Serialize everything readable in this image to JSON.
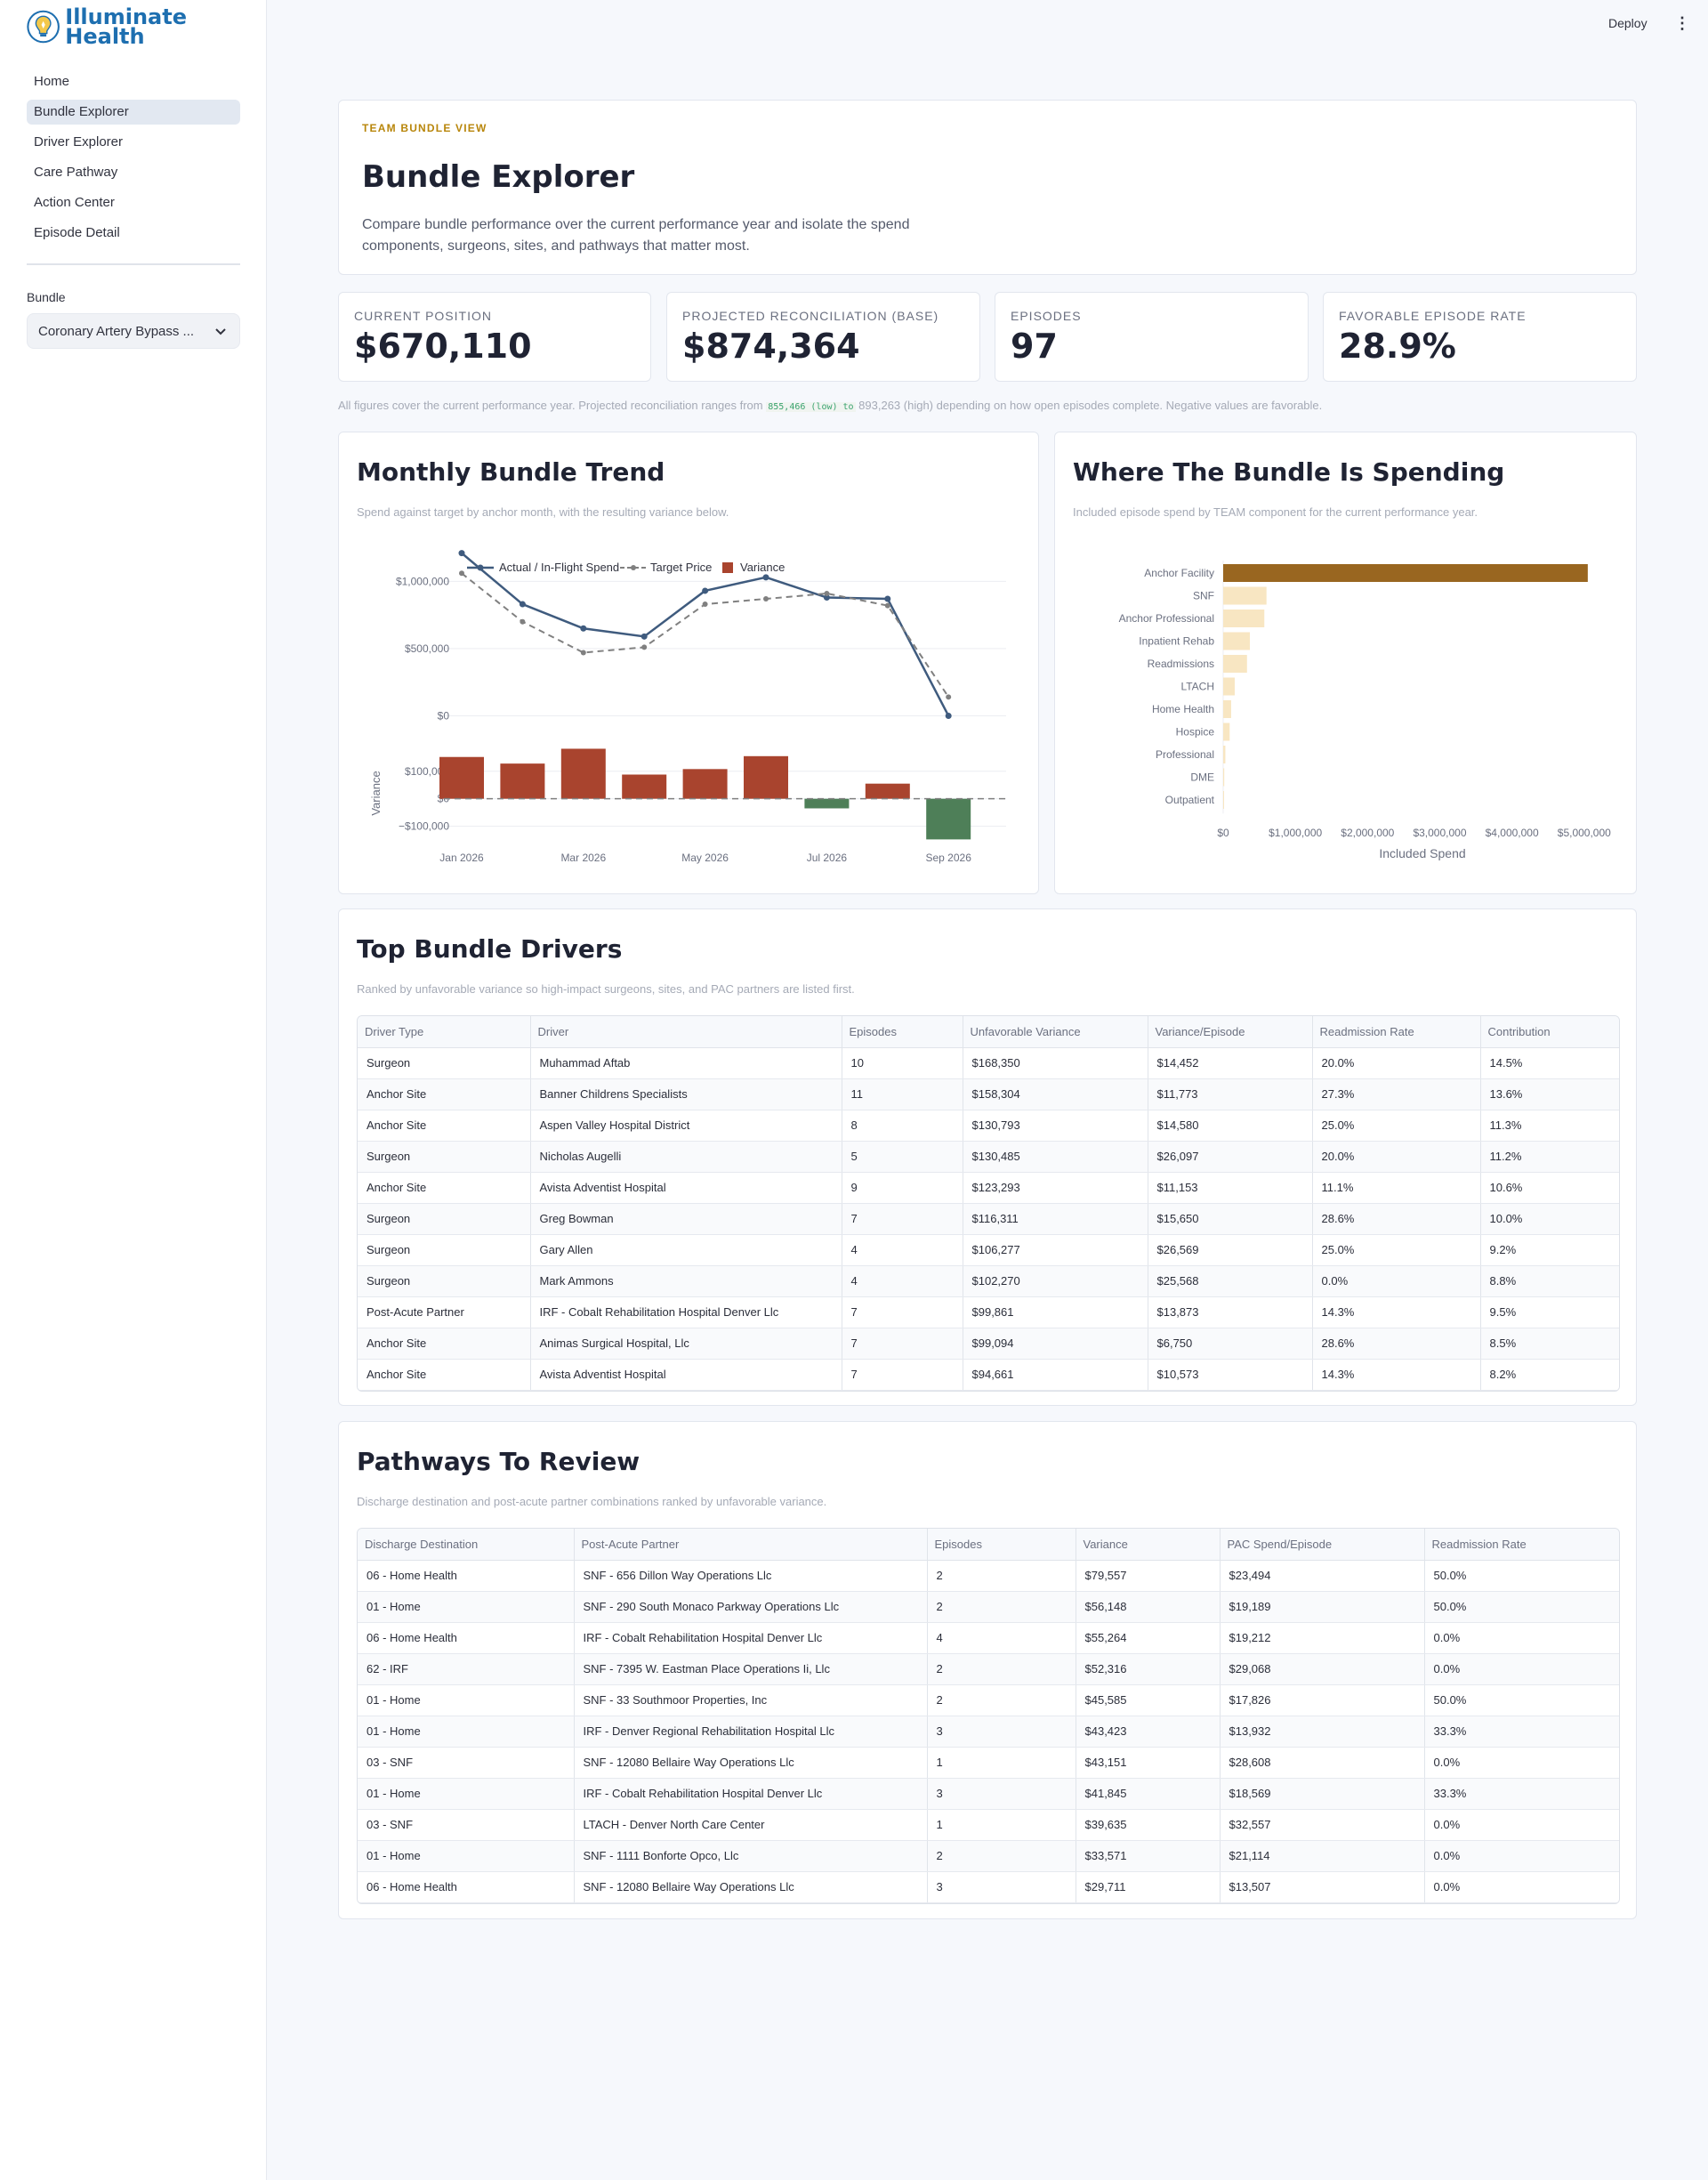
{
  "app": {
    "logo_line1": "Illuminate",
    "logo_line2": "Health"
  },
  "sidebar": {
    "nav": [
      {
        "label": "Home"
      },
      {
        "label": "Bundle Explorer",
        "active": true
      },
      {
        "label": "Driver Explorer"
      },
      {
        "label": "Care Pathway"
      },
      {
        "label": "Action Center"
      },
      {
        "label": "Episode Detail"
      }
    ],
    "bundle_label": "Bundle",
    "bundle_value": "Coronary Artery Bypass ..."
  },
  "topbar": {
    "deploy": "Deploy",
    "menu_glyph": "⋮"
  },
  "header": {
    "eyebrow": "TEAM BUNDLE VIEW",
    "title": "Bundle Explorer",
    "description": "Compare bundle performance over the current performance year and isolate the spend components, surgeons, sites, and pathways that matter most."
  },
  "kpis": [
    {
      "label": "CURRENT POSITION",
      "value": "$670,110"
    },
    {
      "label": "PROJECTED RECONCILIATION (BASE)",
      "value": "$874,364"
    },
    {
      "label": "EPISODES",
      "value": "97"
    },
    {
      "label": "FAVORABLE EPISODE RATE",
      "value": "28.9%"
    }
  ],
  "note": {
    "prefix": "All figures cover the current performance year. Projected reconciliation ranges from ",
    "code": "855,466 (low) to",
    "suffix": " 893,263 (high) depending on how open episodes complete. Negative values are favorable."
  },
  "trend": {
    "title": "Monthly Bundle Trend",
    "subtitle": "Spend against target by anchor month, with the resulting variance below."
  },
  "spend": {
    "title": "Where The Bundle Is Spending",
    "subtitle": "Included episode spend by TEAM component for the current performance year."
  },
  "chart_data": [
    {
      "type": "line",
      "title": "Monthly Bundle Trend",
      "x": [
        "Jan 2026",
        "Feb 2026",
        "Mar 2026",
        "Apr 2026",
        "May 2026",
        "Jun 2026",
        "Jul 2026",
        "Aug 2026",
        "Sep 2026"
      ],
      "x_ticks": [
        "Jan 2026",
        "Mar 2026",
        "May 2026",
        "Jul 2026",
        "Sep 2026"
      ],
      "series": [
        {
          "name": "Actual / In-Flight Spend",
          "values": [
            1210000,
            830000,
            650000,
            590000,
            930000,
            1030000,
            880000,
            870000,
            0
          ],
          "color": "#3f5b7e"
        },
        {
          "name": "Target Price",
          "values": [
            1060000,
            700000,
            470000,
            510000,
            830000,
            870000,
            910000,
            820000,
            140000
          ],
          "color": "#808080"
        }
      ],
      "y_ticks": [
        0,
        500000,
        1000000
      ],
      "y_tick_labels": [
        "$0",
        "$500,000",
        "$1,000,000"
      ],
      "ylim": [
        -30000,
        1340000
      ],
      "legend": "top"
    },
    {
      "type": "bar",
      "x": [
        "Jan 2026",
        "Feb 2026",
        "Mar 2026",
        "Apr 2026",
        "May 2026",
        "Jun 2026",
        "Jul 2026",
        "Aug 2026",
        "Sep 2026"
      ],
      "series": [
        {
          "name": "Variance",
          "values": [
            152000,
            128000,
            182000,
            88000,
            108000,
            155000,
            -35000,
            55000,
            -148000
          ]
        }
      ],
      "ylabel": "Variance",
      "y_ticks": [
        -100000,
        0,
        100000
      ],
      "y_tick_labels": [
        "−$100,000",
        "$0",
        "$100,000"
      ],
      "ylim": [
        -150000,
        190000
      ],
      "colors": {
        "positive": "#a9442e",
        "negative": "#4e7f58"
      }
    },
    {
      "type": "bar",
      "orientation": "horizontal",
      "title": "Where The Bundle Is Spending",
      "categories": [
        "Anchor Facility",
        "SNF",
        "Anchor Professional",
        "Inpatient Rehab",
        "Readmissions",
        "LTACH",
        "Home Health",
        "Hospice",
        "Professional",
        "DME",
        "Outpatient"
      ],
      "values": [
        5050000,
        600000,
        570000,
        370000,
        330000,
        160000,
        110000,
        90000,
        30000,
        15000,
        8000
      ],
      "xlabel": "Included Spend",
      "x_ticks": [
        0,
        1000000,
        2000000,
        3000000,
        4000000,
        5000000
      ],
      "x_tick_labels": [
        "$0",
        "$1,000,000",
        "$2,000,000",
        "$3,000,000",
        "$4,000,000",
        "$5,000,000"
      ],
      "xlim": [
        0,
        5520000
      ],
      "colors": {
        "top": "#996620",
        "rest": "#f8e6c2"
      }
    }
  ],
  "drivers": {
    "title": "Top Bundle Drivers",
    "subtitle": "Ranked by unfavorable variance so high-impact surgeons, sites, and PAC partners are listed first.",
    "columns": [
      "Driver Type",
      "Driver",
      "Episodes",
      "Unfavorable Variance",
      "Variance/Episode",
      "Readmission Rate",
      "Contribution"
    ],
    "rows": [
      [
        "Surgeon",
        "Muhammad Aftab",
        "10",
        "$168,350",
        "$14,452",
        "20.0%",
        "14.5%"
      ],
      [
        "Anchor Site",
        "Banner Childrens Specialists",
        "11",
        "$158,304",
        "$11,773",
        "27.3%",
        "13.6%"
      ],
      [
        "Anchor Site",
        "Aspen Valley Hospital District",
        "8",
        "$130,793",
        "$14,580",
        "25.0%",
        "11.3%"
      ],
      [
        "Surgeon",
        "Nicholas Augelli",
        "5",
        "$130,485",
        "$26,097",
        "20.0%",
        "11.2%"
      ],
      [
        "Anchor Site",
        "Avista Adventist Hospital",
        "9",
        "$123,293",
        "$11,153",
        "11.1%",
        "10.6%"
      ],
      [
        "Surgeon",
        "Greg Bowman",
        "7",
        "$116,311",
        "$15,650",
        "28.6%",
        "10.0%"
      ],
      [
        "Surgeon",
        "Gary Allen",
        "4",
        "$106,277",
        "$26,569",
        "25.0%",
        "9.2%"
      ],
      [
        "Surgeon",
        "Mark Ammons",
        "4",
        "$102,270",
        "$25,568",
        "0.0%",
        "8.8%"
      ],
      [
        "Post-Acute Partner",
        "IRF - Cobalt Rehabilitation Hospital Denver Llc",
        "7",
        "$99,861",
        "$13,873",
        "14.3%",
        "9.5%"
      ],
      [
        "Anchor Site",
        "Animas Surgical Hospital, Llc",
        "7",
        "$99,094",
        "$6,750",
        "28.6%",
        "8.5%"
      ],
      [
        "Anchor Site",
        "Avista Adventist Hospital",
        "7",
        "$94,661",
        "$10,573",
        "14.3%",
        "8.2%"
      ]
    ]
  },
  "pathways": {
    "title": "Pathways To Review",
    "subtitle": "Discharge destination and post-acute partner combinations ranked by unfavorable variance.",
    "columns": [
      "Discharge Destination",
      "Post-Acute Partner",
      "Episodes",
      "Variance",
      "PAC Spend/Episode",
      "Readmission Rate"
    ],
    "rows": [
      [
        "06 - Home Health",
        "SNF - 656 Dillon Way Operations Llc",
        "2",
        "$79,557",
        "$23,494",
        "50.0%"
      ],
      [
        "01 - Home",
        "SNF - 290 South Monaco Parkway Operations Llc",
        "2",
        "$56,148",
        "$19,189",
        "50.0%"
      ],
      [
        "06 - Home Health",
        "IRF - Cobalt Rehabilitation Hospital Denver Llc",
        "4",
        "$55,264",
        "$19,212",
        "0.0%"
      ],
      [
        "62 - IRF",
        "SNF - 7395 W. Eastman Place Operations Ii, Llc",
        "2",
        "$52,316",
        "$29,068",
        "0.0%"
      ],
      [
        "01 - Home",
        "SNF - 33 Southmoor Properties, Inc",
        "2",
        "$45,585",
        "$17,826",
        "50.0%"
      ],
      [
        "01 - Home",
        "IRF - Denver Regional Rehabilitation Hospital Llc",
        "3",
        "$43,423",
        "$13,932",
        "33.3%"
      ],
      [
        "03 - SNF",
        "SNF - 12080 Bellaire Way Operations Llc",
        "1",
        "$43,151",
        "$28,608",
        "0.0%"
      ],
      [
        "01 - Home",
        "IRF - Cobalt Rehabilitation Hospital Denver Llc",
        "3",
        "$41,845",
        "$18,569",
        "33.3%"
      ],
      [
        "03 - SNF",
        "LTACH - Denver North Care Center",
        "1",
        "$39,635",
        "$32,557",
        "0.0%"
      ],
      [
        "01 - Home",
        "SNF - 1111 Bonforte Opco, Llc",
        "2",
        "$33,571",
        "$21,114",
        "0.0%"
      ],
      [
        "06 - Home Health",
        "SNF - 12080 Bellaire Way Operations Llc",
        "3",
        "$29,711",
        "$13,507",
        "0.0%"
      ]
    ]
  }
}
